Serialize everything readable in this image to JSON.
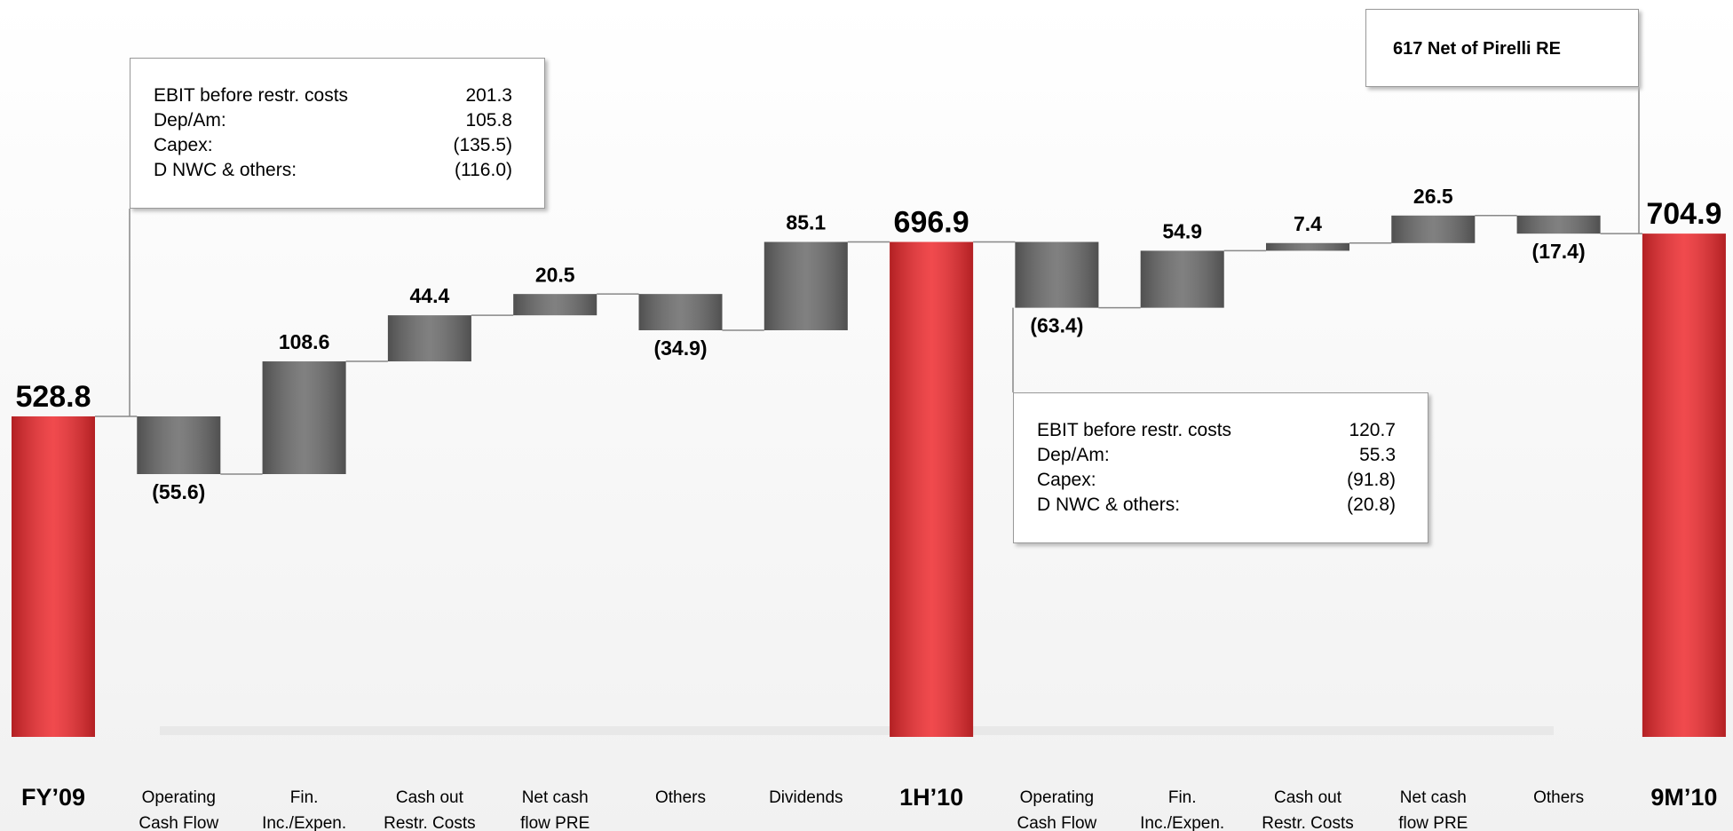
{
  "chart_data": {
    "type": "waterfall",
    "categories": [
      "FY’09",
      "Operating Cash Flow",
      "Fin. Inc./Expen. & taxes",
      "Cash out Restr. Costs",
      "Net cash flow PRE",
      "Others",
      "Dividends",
      "1H’10",
      "Operating Cash Flow",
      "Fin. Inc./Expen. & taxes",
      "Cash out Restr. Costs",
      "Net cash flow PRE",
      "Others",
      "9M’10"
    ],
    "values": [
      528.8,
      -55.6,
      108.6,
      44.4,
      20.5,
      -34.9,
      85.1,
      696.9,
      -63.4,
      54.9,
      7.4,
      26.5,
      -17.4,
      704.9
    ],
    "value_labels": [
      "528.8",
      "(55.6)",
      "108.6",
      "44.4",
      "20.5",
      "(34.9)",
      "85.1",
      "696.9",
      "(63.4)",
      "54.9",
      "7.4",
      "26.5",
      "(17.4)",
      "704.9"
    ],
    "is_total": [
      true,
      false,
      false,
      false,
      false,
      false,
      false,
      true,
      false,
      false,
      false,
      false,
      false,
      true
    ],
    "total_color": "#ee2a2e",
    "delta_color": "#6a6a6a",
    "ylim": [
      220,
      930
    ],
    "annotations": [
      {
        "rows": [
          [
            "EBIT before restr. costs",
            "201.3"
          ],
          [
            "Dep/Am:",
            "105.8"
          ],
          [
            "Capex:",
            "(135.5)"
          ],
          [
            "D NWC & others:",
            "(116.0)"
          ]
        ]
      },
      {
        "rows": [
          [
            "EBIT before restr. costs",
            "120.7"
          ],
          [
            "Dep/Am:",
            "55.3"
          ],
          [
            "Capex:",
            "(91.8)"
          ],
          [
            "D NWC & others:",
            "(20.8)"
          ]
        ]
      },
      {
        "text": "617 Net of Pirelli RE"
      }
    ]
  }
}
